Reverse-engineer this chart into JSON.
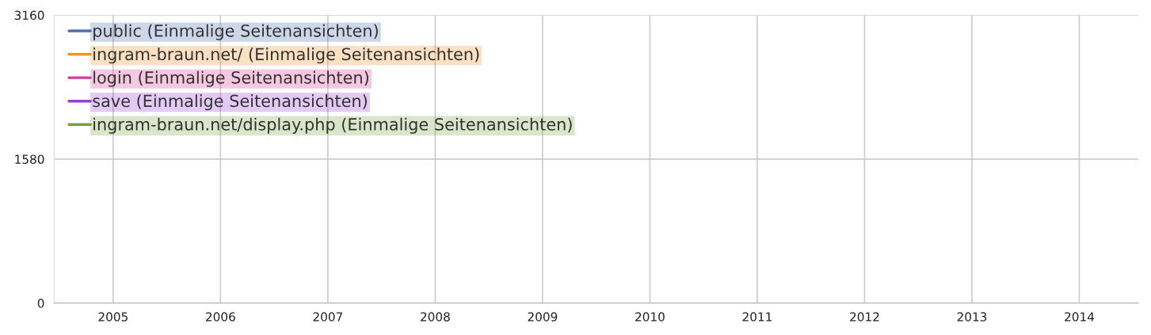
{
  "chart_data": {
    "type": "line",
    "categories": [
      "2005",
      "2006",
      "2007",
      "2008",
      "2009",
      "2010",
      "2011",
      "2012",
      "2013",
      "2014"
    ],
    "series": [
      {
        "name": "public (Einmalige Seitenansichten)",
        "color": "#4e6fb0",
        "values": [
          null,
          null,
          null,
          null,
          null,
          null,
          null,
          null,
          null,
          null
        ]
      },
      {
        "name": "ingram-braun.net/ (Einmalige Seitenansichten)",
        "color": "#f0931f",
        "values": [
          null,
          null,
          null,
          null,
          null,
          null,
          null,
          null,
          null,
          null
        ]
      },
      {
        "name": "login (Einmalige Seitenansichten)",
        "color": "#d63a94",
        "values": [
          null,
          null,
          null,
          null,
          null,
          null,
          null,
          null,
          null,
          null
        ]
      },
      {
        "name": "save (Einmalige Seitenansichten)",
        "color": "#9a3fd6",
        "values": [
          null,
          null,
          null,
          null,
          null,
          null,
          null,
          null,
          null,
          null
        ]
      },
      {
        "name": "ingram-braun.net/display.php (Einmalige Seitenansichten)",
        "color": "#7aa03c",
        "values": [
          null,
          null,
          null,
          null,
          null,
          null,
          null,
          null,
          null,
          null
        ]
      }
    ],
    "ylim": [
      0,
      3160
    ],
    "yticks": [
      0,
      1580,
      3160
    ],
    "grid": true,
    "legend": "top left",
    "marker": "none",
    "line_style": "solid"
  }
}
